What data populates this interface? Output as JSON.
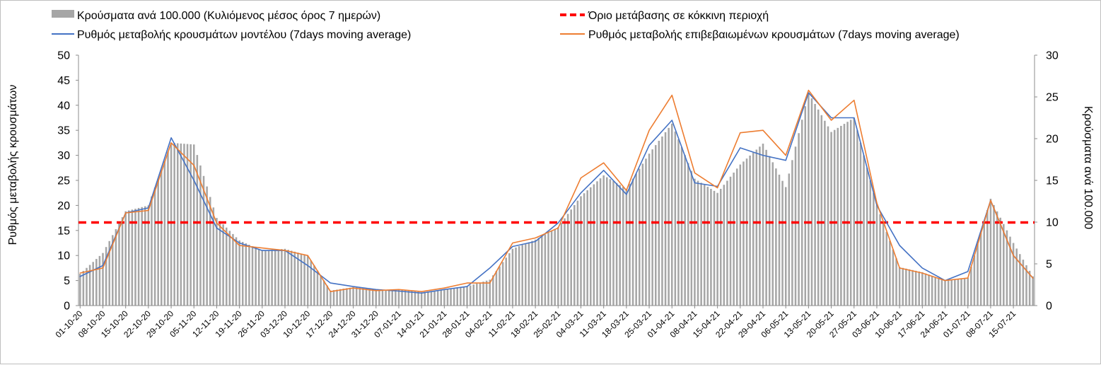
{
  "chart_data": {
    "type": "bar",
    "ylabel": "Ρυθμός μεταβολής κρουσμάτων",
    "y2label": "Κρούσματα ανά 100.000",
    "ylim": [
      0,
      50
    ],
    "y2lim": [
      0,
      30
    ],
    "yticks": [
      "0",
      "5",
      "10",
      "15",
      "20",
      "25",
      "30",
      "35",
      "40",
      "45",
      "50"
    ],
    "y2ticks": [
      "0",
      "5",
      "10",
      "15",
      "20",
      "25",
      "30"
    ],
    "grid": false,
    "legend_position": "top",
    "x_start": "2020-10-01",
    "x_end": "2021-07-21",
    "xtick_labels": [
      "01-10-20",
      "08-10-20",
      "15-10-20",
      "22-10-20",
      "29-10-20",
      "05-11-20",
      "12-11-20",
      "19-11-20",
      "26-11-20",
      "03-12-20",
      "10-12-20",
      "17-12-20",
      "24-12-20",
      "31-12-20",
      "07-01-21",
      "14-01-21",
      "21-01-21",
      "28-01-21",
      "04-02-21",
      "11-02-21",
      "18-02-21",
      "25-02-21",
      "04-03-21",
      "11-03-21",
      "18-03-21",
      "25-03-21",
      "01-04-21",
      "08-04-21",
      "15-04-21",
      "22-04-21",
      "29-04-21",
      "06-05-21",
      "13-05-21",
      "20-05-21",
      "27-05-21",
      "03-06-21",
      "10-06-21",
      "17-06-21",
      "24-06-21",
      "01-07-21",
      "08-07-21",
      "15-07-21"
    ],
    "threshold": {
      "name": "Όριο μετάβασης σε κόκκινη περιοχή",
      "value": 16.6,
      "color": "#ff0000"
    },
    "series": [
      {
        "name": "Κρούσματα ανά 100.000 (Κυλιόμενος μέσος όρος 7 ημερών)",
        "type": "bar",
        "axis": "right",
        "color": "#a6a6a6",
        "x": [
          "2020-10-01",
          "2020-10-08",
          "2020-10-15",
          "2020-10-22",
          "2020-10-29",
          "2020-11-05",
          "2020-11-12",
          "2020-11-19",
          "2020-11-26",
          "2020-12-03",
          "2020-12-10",
          "2020-12-17",
          "2020-12-24",
          "2020-12-31",
          "2021-01-07",
          "2021-01-14",
          "2021-01-21",
          "2021-01-28",
          "2021-02-04",
          "2021-02-11",
          "2021-02-18",
          "2021-02-25",
          "2021-03-04",
          "2021-03-11",
          "2021-03-18",
          "2021-03-25",
          "2021-04-01",
          "2021-04-08",
          "2021-04-15",
          "2021-04-22",
          "2021-04-29",
          "2021-05-06",
          "2021-05-13",
          "2021-05-20",
          "2021-05-27",
          "2021-06-03",
          "2021-06-10",
          "2021-06-17",
          "2021-06-24",
          "2021-07-01",
          "2021-07-08",
          "2021-07-15",
          "2021-07-21"
        ],
        "values": [
          3.8,
          6.3,
          11.3,
          12.0,
          19.5,
          19.3,
          10.5,
          7.8,
          6.6,
          6.8,
          6.0,
          1.8,
          2.2,
          1.9,
          1.9,
          1.6,
          1.9,
          2.3,
          3.1,
          6.8,
          7.9,
          9.4,
          13.1,
          15.6,
          14.0,
          18.2,
          21.8,
          15.2,
          13.5,
          16.9,
          19.4,
          14.2,
          25.5,
          20.8,
          22.5,
          12.0,
          4.6,
          4.0,
          3.0,
          3.3,
          12.8,
          7.5,
          3.5
        ]
      },
      {
        "name": "Ρυθμός μεταβολής κρουσμάτων μοντέλου (7days moving average)",
        "type": "line",
        "axis": "left",
        "color": "#4472c4",
        "x": [
          "2020-10-01",
          "2020-10-08",
          "2020-10-15",
          "2020-10-22",
          "2020-10-29",
          "2020-11-05",
          "2020-11-12",
          "2020-11-19",
          "2020-11-26",
          "2020-12-03",
          "2020-12-10",
          "2020-12-17",
          "2020-12-24",
          "2020-12-31",
          "2021-01-07",
          "2021-01-14",
          "2021-01-21",
          "2021-01-28",
          "2021-02-04",
          "2021-02-11",
          "2021-02-18",
          "2021-02-25",
          "2021-03-04",
          "2021-03-11",
          "2021-03-18",
          "2021-03-25",
          "2021-04-01",
          "2021-04-08",
          "2021-04-15",
          "2021-04-22",
          "2021-04-29",
          "2021-05-06",
          "2021-05-13",
          "2021-05-20",
          "2021-05-27",
          "2021-06-03",
          "2021-06-10",
          "2021-06-17",
          "2021-06-24",
          "2021-07-01",
          "2021-07-08",
          "2021-07-15",
          "2021-07-21"
        ],
        "values": [
          5.8,
          8.0,
          18.5,
          19.5,
          33.5,
          25.0,
          15.5,
          12.5,
          11.0,
          11.0,
          8.0,
          4.5,
          3.8,
          3.2,
          2.9,
          2.5,
          3.2,
          3.8,
          7.5,
          11.8,
          12.8,
          16.5,
          22.5,
          27.0,
          22.2,
          32.0,
          37.0,
          24.5,
          23.8,
          31.5,
          30.0,
          29.0,
          42.5,
          37.5,
          37.5,
          20.0,
          12.0,
          7.5,
          5.0,
          6.8,
          21.0,
          10.0,
          5.5
        ]
      },
      {
        "name": "Ρυθμός μεταβολής επιβεβαιωμένων κρουσμάτων (7days moving average)",
        "type": "line",
        "axis": "left",
        "color": "#ed7d31",
        "x": [
          "2020-10-01",
          "2020-10-08",
          "2020-10-15",
          "2020-10-22",
          "2020-10-29",
          "2020-11-05",
          "2020-11-12",
          "2020-11-19",
          "2020-11-26",
          "2020-12-03",
          "2020-12-10",
          "2020-12-17",
          "2020-12-24",
          "2020-12-31",
          "2021-01-07",
          "2021-01-14",
          "2021-01-21",
          "2021-01-28",
          "2021-02-04",
          "2021-02-11",
          "2021-02-18",
          "2021-02-25",
          "2021-03-04",
          "2021-03-11",
          "2021-03-18",
          "2021-03-25",
          "2021-04-01",
          "2021-04-08",
          "2021-04-15",
          "2021-04-22",
          "2021-04-29",
          "2021-05-06",
          "2021-05-13",
          "2021-05-20",
          "2021-05-27",
          "2021-06-03",
          "2021-06-10",
          "2021-06-17",
          "2021-06-24",
          "2021-07-01",
          "2021-07-08",
          "2021-07-15",
          "2021-07-21"
        ],
        "values": [
          6.5,
          7.5,
          18.5,
          19.0,
          32.5,
          28.0,
          16.5,
          12.0,
          11.5,
          11.0,
          10.0,
          2.8,
          3.5,
          3.0,
          3.2,
          2.8,
          3.5,
          4.5,
          4.5,
          12.5,
          13.5,
          15.5,
          25.5,
          28.5,
          23.0,
          35.0,
          42.0,
          26.5,
          23.5,
          34.5,
          35.0,
          30.0,
          43.0,
          37.0,
          41.0,
          20.5,
          7.5,
          6.5,
          5.0,
          5.5,
          21.0,
          10.0,
          5.5
        ]
      }
    ]
  }
}
